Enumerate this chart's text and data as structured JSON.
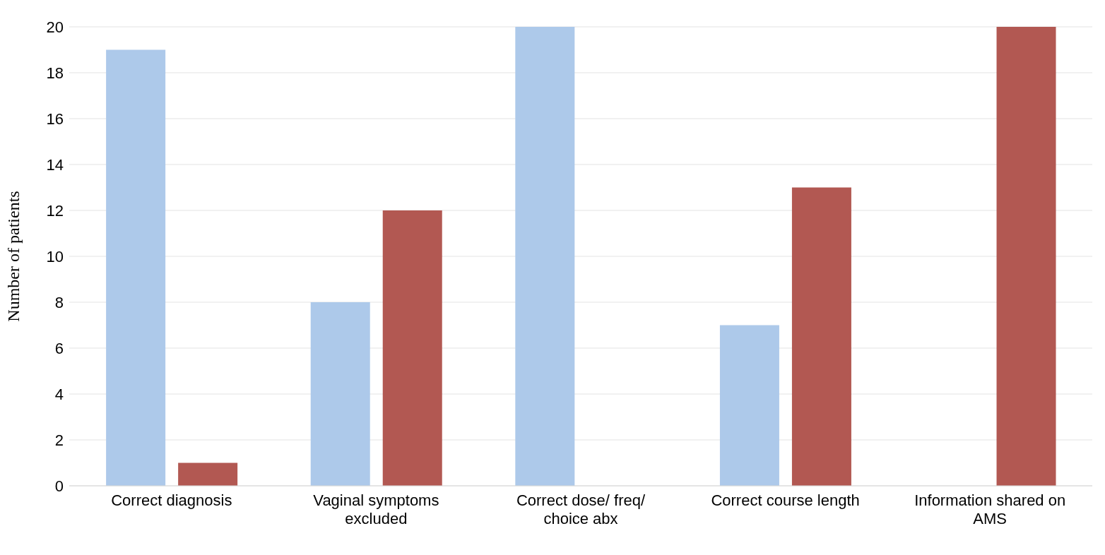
{
  "chart_data": {
    "type": "bar",
    "ylabel": "Number of patients",
    "categories": [
      "Correct diagnosis",
      "Vaginal symptoms excluded",
      "Correct dose/ freq/ choice abx",
      "Correct course length",
      "Information shared on AMS"
    ],
    "series": [
      {
        "color": "#adc9ea",
        "values": [
          19,
          8,
          20,
          7,
          0
        ]
      },
      {
        "color": "#b25852",
        "values": [
          1,
          12,
          0,
          13,
          20
        ]
      }
    ],
    "ylim": [
      0,
      20
    ],
    "yticks": [
      0,
      2,
      4,
      6,
      8,
      10,
      12,
      14,
      16,
      18,
      20
    ],
    "grid": "y"
  }
}
